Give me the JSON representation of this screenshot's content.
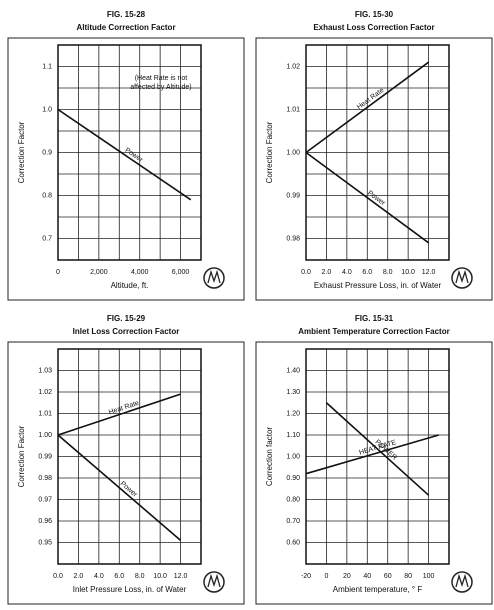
{
  "chart_data": [
    {
      "type": "line",
      "figure": "FIG. 15-28",
      "title": "Altitude Correction Factor",
      "x_label": "Altitude, ft.",
      "y_label": "Correction Factor",
      "annotation": [
        "(Heat Rate is not",
        "affected by Altitude)"
      ],
      "xlim": [
        0,
        7000
      ],
      "xticks": [
        0,
        {
          "value": 2000,
          "label": "2,000"
        },
        {
          "value": 4000,
          "label": "4,000"
        },
        {
          "value": 6000,
          "label": "6,000"
        }
      ],
      "xminor": [
        1000,
        3000,
        5000
      ],
      "ylim": [
        0.65,
        1.15
      ],
      "yticks": [
        1.1,
        {
          "value": 1,
          "label": "1.0"
        },
        0.9,
        0.8,
        0.7
      ],
      "yminor": [
        1.05,
        0.95,
        0.85,
        0.75
      ],
      "grid": true,
      "series": [
        {
          "name": "Power",
          "color": "#111111",
          "x": [
            0,
            6500
          ],
          "values": [
            1.0,
            0.79
          ]
        }
      ]
    },
    {
      "type": "line",
      "figure": "FIG. 15-30",
      "title": "Exhaust Loss Correction Factor",
      "x_label": "Exhaust Pressure Loss, in. of Water",
      "y_label": "Correction Factor",
      "xlim": [
        0,
        14
      ],
      "xticks": [
        {
          "value": 0,
          "label": "0.0"
        },
        {
          "value": 2,
          "label": "2.0"
        },
        {
          "value": 4,
          "label": "4.0"
        },
        {
          "value": 6,
          "label": "6.0"
        },
        {
          "value": 8,
          "label": "8.0"
        },
        {
          "value": 10,
          "label": "10.0"
        },
        {
          "value": 12,
          "label": "12.0"
        }
      ],
      "xminor": [],
      "ylim": [
        0.975,
        1.025
      ],
      "yticks": [
        1.02,
        1.01,
        {
          "value": 1,
          "label": "1.00"
        },
        0.99,
        0.98
      ],
      "yminor": [
        1.015,
        1.005,
        0.995,
        0.985
      ],
      "grid": true,
      "series": [
        {
          "name": "Heat Rate",
          "color": "#111111",
          "x": [
            0,
            12
          ],
          "values": [
            1.0,
            1.021
          ]
        },
        {
          "name": "Power",
          "color": "#111111",
          "x": [
            0,
            12
          ],
          "values": [
            1.0,
            0.979
          ]
        }
      ]
    },
    {
      "type": "line",
      "figure": "FIG. 15-29",
      "title": "Inlet Loss Correction Factor",
      "x_label": "Inlet Pressure Loss, in. of Water",
      "y_label": "Correction Factor",
      "xlim": [
        0,
        14
      ],
      "xticks": [
        {
          "value": 0,
          "label": "0.0"
        },
        {
          "value": 2,
          "label": "2.0"
        },
        {
          "value": 4,
          "label": "4.0"
        },
        {
          "value": 6,
          "label": "6.0"
        },
        {
          "value": 8,
          "label": "8.0"
        },
        {
          "value": 10,
          "label": "10.0"
        },
        {
          "value": 12,
          "label": "12.0"
        }
      ],
      "xminor": [],
      "ylim": [
        0.94,
        1.04
      ],
      "yticks": [
        1.03,
        1.02,
        1.01,
        {
          "value": 1,
          "label": "1.00"
        },
        0.99,
        0.98,
        0.97,
        0.96,
        0.95
      ],
      "yminor": [],
      "grid": true,
      "series": [
        {
          "name": "Heat Rate",
          "color": "#111111",
          "x": [
            0,
            12
          ],
          "values": [
            1.0,
            1.019
          ]
        },
        {
          "name": "Power",
          "color": "#111111",
          "x": [
            0,
            12
          ],
          "values": [
            1.0,
            0.951
          ]
        }
      ]
    },
    {
      "type": "line",
      "figure": "FIG. 15-31",
      "title": "Ambient Temperature Correction Factor",
      "x_label": "Ambient temperature, ° F",
      "y_label": "Correction factor",
      "xlim": [
        -20,
        120
      ],
      "xticks": [
        -20,
        0,
        20,
        40,
        60,
        80,
        100
      ],
      "xminor": [],
      "ylim": [
        0.5,
        1.5
      ],
      "yticks": [
        {
          "value": 1.4,
          "label": "1.40"
        },
        {
          "value": 1.3,
          "label": "1.30"
        },
        {
          "value": 1.2,
          "label": "1.20"
        },
        {
          "value": 1.1,
          "label": "1.10"
        },
        {
          "value": 1,
          "label": "1.00"
        },
        {
          "value": 0.9,
          "label": "0.90"
        },
        {
          "value": 0.8,
          "label": "0.80"
        },
        {
          "value": 0.7,
          "label": "0.70"
        },
        {
          "value": 0.6,
          "label": "0.60"
        }
      ],
      "yminor": [],
      "grid": true,
      "series": [
        {
          "name": "POWER",
          "color": "#111111",
          "x": [
            0,
            100
          ],
          "values": [
            1.25,
            0.82
          ]
        },
        {
          "name": "HEAT RATE",
          "color": "#111111",
          "x": [
            -20,
            110
          ],
          "values": [
            0.92,
            1.1
          ]
        }
      ]
    }
  ]
}
